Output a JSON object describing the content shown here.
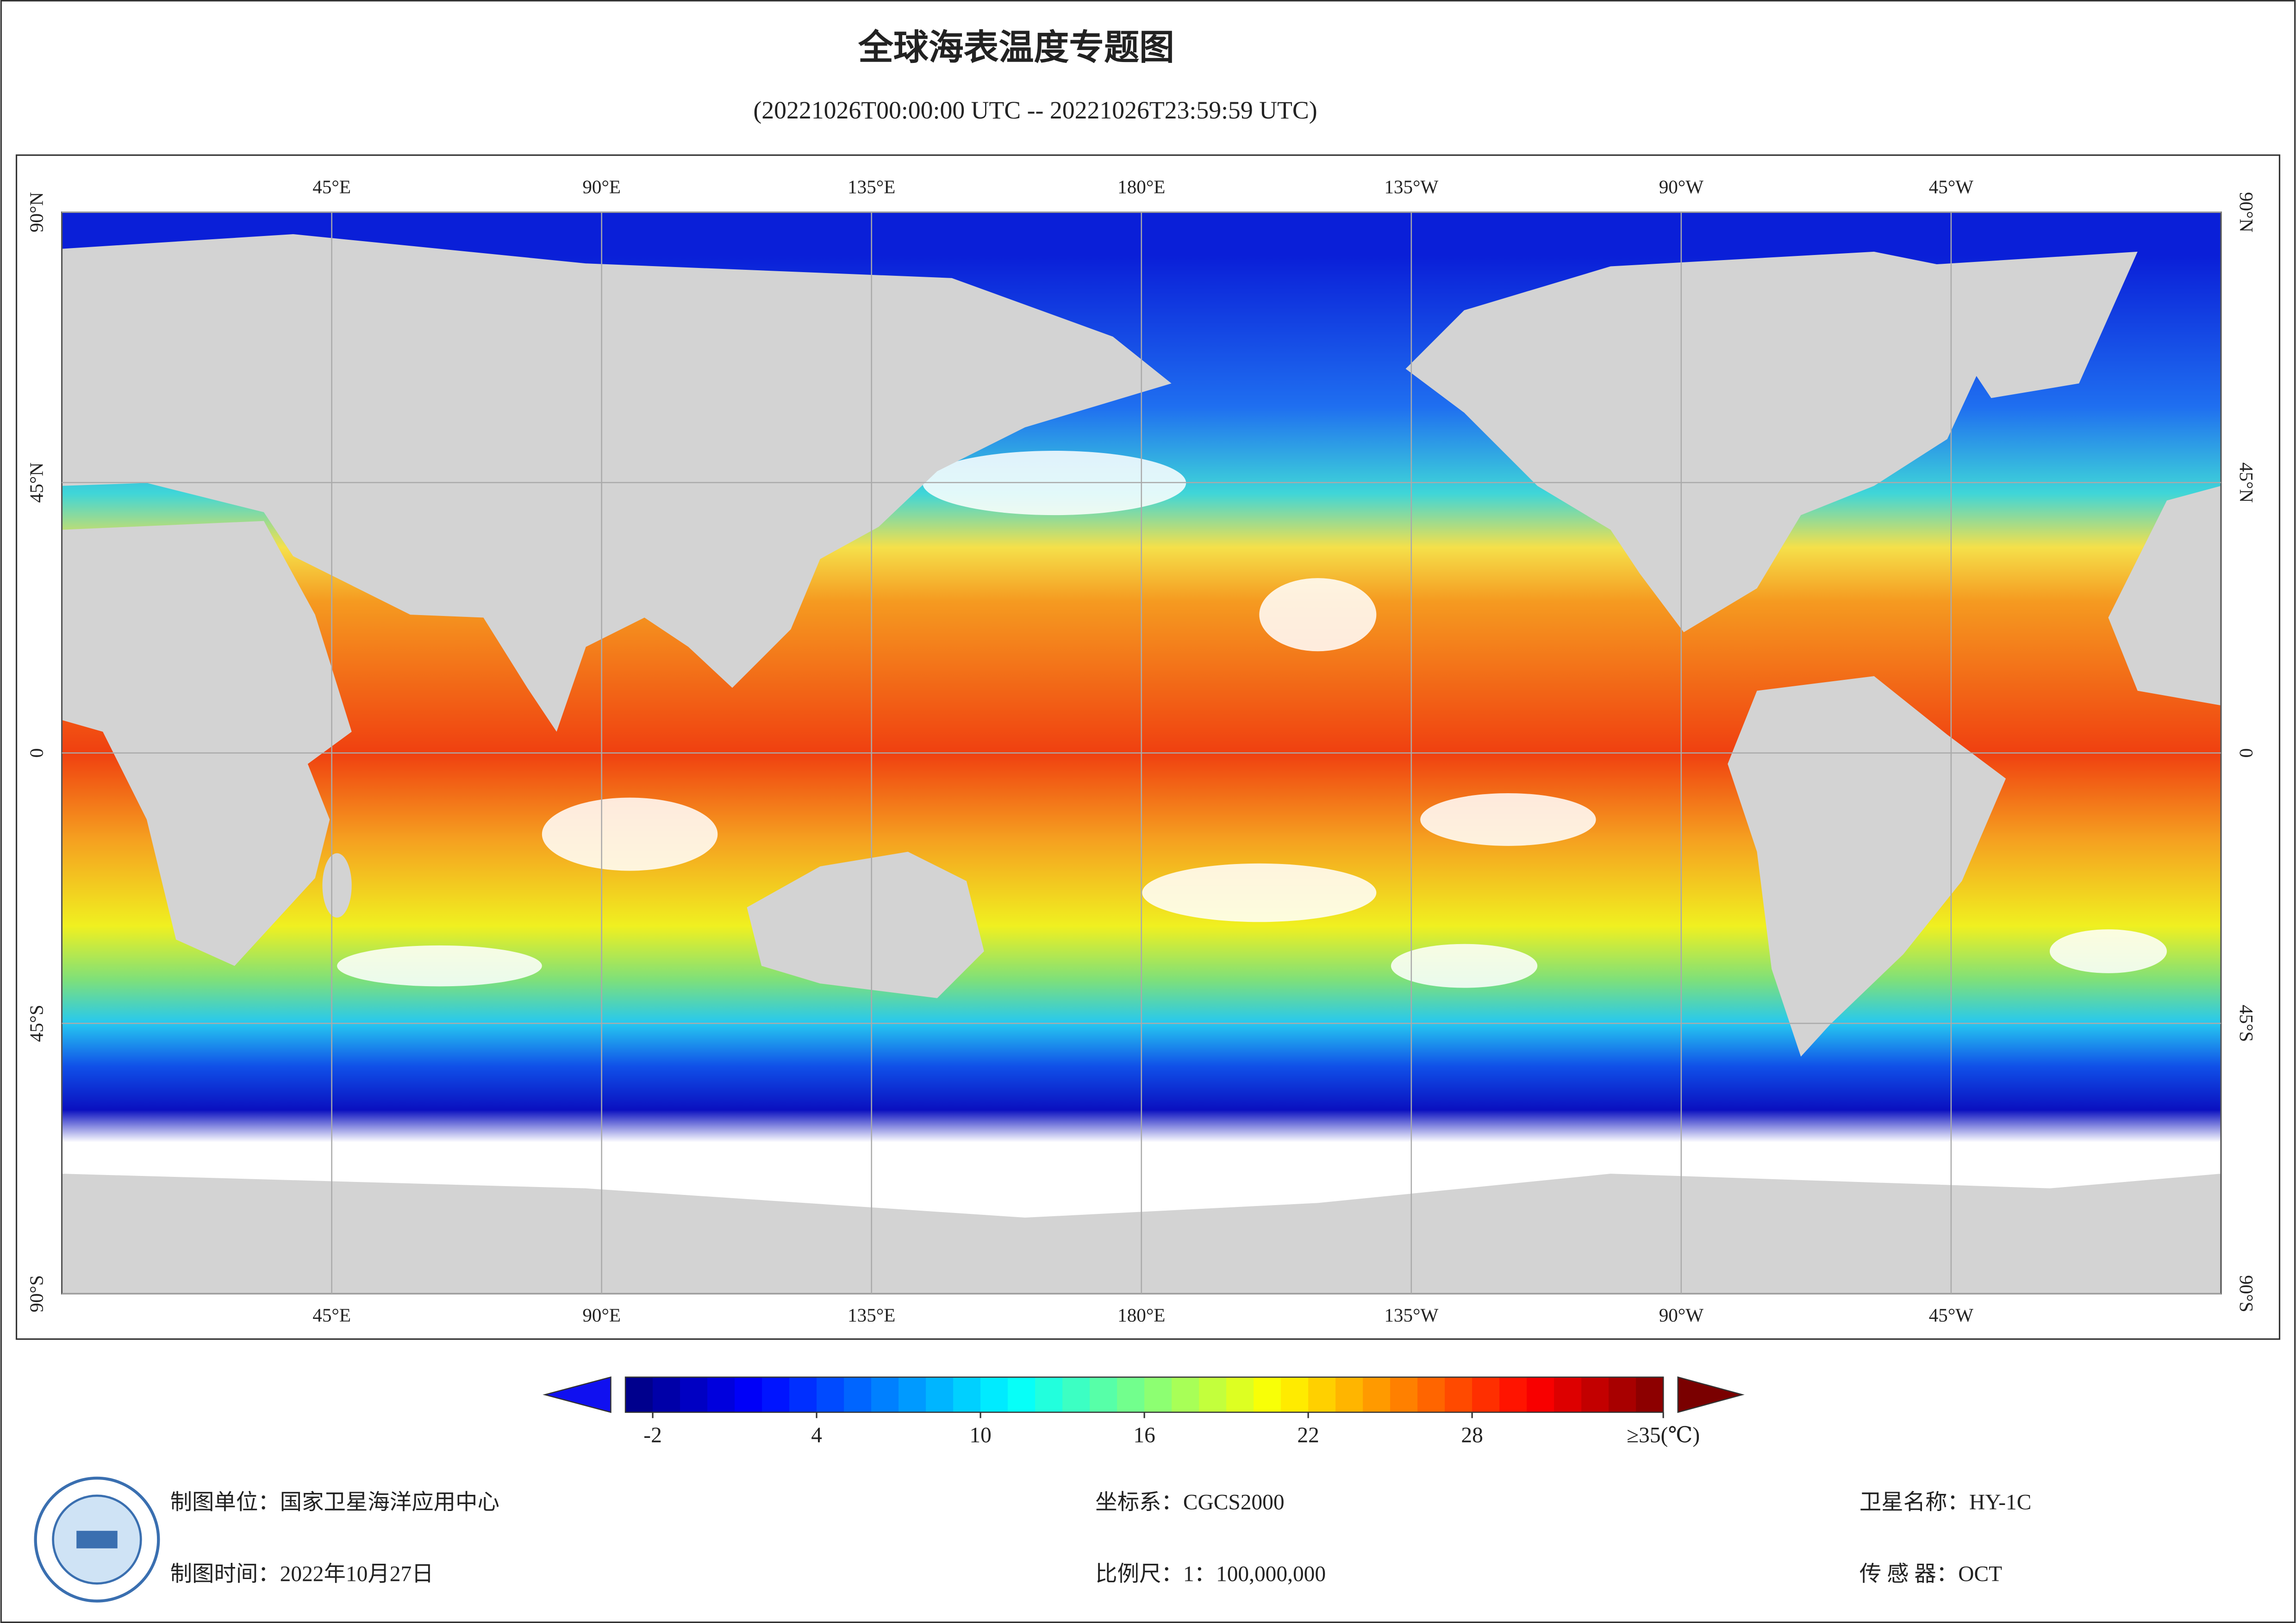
{
  "title": "全球海表温度专题图",
  "subtitle": "(20221026T00:00:00 UTC -- 20221026T23:59:59 UTC)",
  "map": {
    "lon_range": [
      0,
      360
    ],
    "lat_range": [
      -90,
      90
    ],
    "lon_ticks": [
      {
        "value": 45,
        "label": "45°E"
      },
      {
        "value": 90,
        "label": "90°E"
      },
      {
        "value": 135,
        "label": "135°E"
      },
      {
        "value": 180,
        "label": "180°E"
      },
      {
        "value": 225,
        "label": "135°W"
      },
      {
        "value": 270,
        "label": "90°W"
      },
      {
        "value": 315,
        "label": "45°W"
      }
    ],
    "lat_ticks": [
      {
        "value": 90,
        "label": "90°N"
      },
      {
        "value": 45,
        "label": "45°N"
      },
      0,
      {
        "value": -45,
        "label": "45°S"
      },
      {
        "value": -90,
        "label": "90°S"
      }
    ]
  },
  "colorbar": {
    "range": [
      -3,
      35
    ],
    "ticks": [
      -2,
      4,
      10,
      16,
      22,
      28,
      {
        "value": 35,
        "label": "≥35(℃)"
      }
    ]
  },
  "footer": {
    "unit": "制图单位：国家卫星海洋应用中心",
    "date": "制图时间：2022年10月27日",
    "crs": "坐标系：CGCS2000",
    "scale": "比例尺：1：100,000,000",
    "satellite": "卫星名称：HY-1C",
    "sensor": "传 感 器：OCT"
  }
}
